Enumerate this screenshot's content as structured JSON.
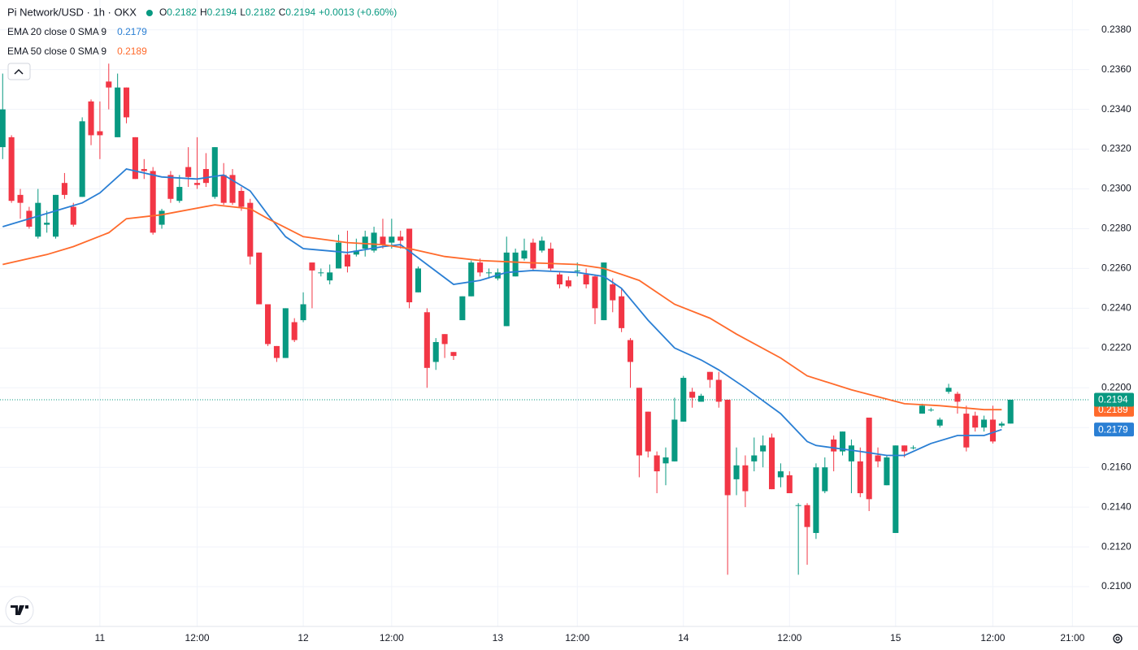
{
  "chart_data": {
    "type": "candlestick",
    "title": "Pi Network/USD · 1h · OKX",
    "header": {
      "labels": [
        "O",
        "H",
        "L",
        "C"
      ],
      "change": "+0.0013 (+0.60%)"
    },
    "up_color": "#089981",
    "down_color": "#f23645",
    "candles": [
      [
        0.2321,
        0.2358,
        0.2315,
        0.234
      ],
      [
        0.2326,
        0.2327,
        0.2293,
        0.2294
      ],
      [
        0.2297,
        0.23,
        0.2285,
        0.2293
      ],
      [
        0.2289,
        0.2291,
        0.228,
        0.2281
      ],
      [
        0.2276,
        0.23,
        0.2275,
        0.2293
      ],
      [
        0.2282,
        0.2289,
        0.2278,
        0.2283
      ],
      [
        0.2276,
        0.2297,
        0.2275,
        0.2297
      ],
      [
        0.2303,
        0.2308,
        0.2295,
        0.2297
      ],
      [
        0.2291,
        0.2293,
        0.2281,
        0.2282
      ],
      [
        0.2296,
        0.2336,
        0.2296,
        0.2334
      ],
      [
        0.2344,
        0.2345,
        0.2322,
        0.2327
      ],
      [
        0.2329,
        0.2344,
        0.2315,
        0.2327
      ],
      [
        0.2354,
        0.2363,
        0.234,
        0.2351
      ],
      [
        0.2326,
        0.2358,
        0.2326,
        0.2351
      ],
      [
        0.2351,
        0.2351,
        0.2333,
        0.2336
      ],
      [
        0.2326,
        0.2326,
        0.2305,
        0.2305
      ],
      [
        0.231,
        0.2315,
        0.2305,
        0.2309
      ],
      [
        0.2309,
        0.2311,
        0.2277,
        0.2278
      ],
      [
        0.2282,
        0.229,
        0.228,
        0.2289
      ],
      [
        0.2307,
        0.2309,
        0.2293,
        0.2295
      ],
      [
        0.2294,
        0.2307,
        0.2293,
        0.2301
      ],
      [
        0.2311,
        0.2321,
        0.2301,
        0.2306
      ],
      [
        0.2303,
        0.2326,
        0.23,
        0.2302
      ],
      [
        0.231,
        0.2318,
        0.2301,
        0.2303
      ],
      [
        0.2296,
        0.2321,
        0.2295,
        0.2321
      ],
      [
        0.2307,
        0.2313,
        0.2292,
        0.2293
      ],
      [
        0.2307,
        0.231,
        0.2292,
        0.2293
      ],
      [
        0.2299,
        0.2301,
        0.2289,
        0.2291
      ],
      [
        0.2293,
        0.2295,
        0.2262,
        0.2266
      ],
      [
        0.2268,
        0.2268,
        0.2242,
        0.2242
      ],
      [
        0.2242,
        0.2242,
        0.2221,
        0.2222
      ],
      [
        0.2221,
        0.2221,
        0.2213,
        0.2215
      ],
      [
        0.2215,
        0.224,
        0.2215,
        0.224
      ],
      [
        0.2233,
        0.2235,
        0.2223,
        0.2224
      ],
      [
        0.2234,
        0.2248,
        0.2233,
        0.2242
      ],
      [
        0.2263,
        0.2263,
        0.224,
        0.2259
      ],
      [
        0.2258,
        0.226,
        0.2256,
        0.2258
      ],
      [
        0.2254,
        0.2262,
        0.2252,
        0.2258
      ],
      [
        0.226,
        0.2277,
        0.226,
        0.2273
      ],
      [
        0.2267,
        0.2279,
        0.2258,
        0.2261
      ],
      [
        0.2267,
        0.2275,
        0.2266,
        0.2269
      ],
      [
        0.227,
        0.2279,
        0.2266,
        0.2276
      ],
      [
        0.2269,
        0.2281,
        0.2268,
        0.2278
      ],
      [
        0.2276,
        0.2285,
        0.227,
        0.2272
      ],
      [
        0.2273,
        0.2285,
        0.227,
        0.2276
      ],
      [
        0.2276,
        0.2279,
        0.227,
        0.2274
      ],
      [
        0.228,
        0.228,
        0.224,
        0.2243
      ],
      [
        0.2248,
        0.2261,
        0.2248,
        0.226
      ],
      [
        0.2238,
        0.224,
        0.22,
        0.221
      ],
      [
        0.2213,
        0.2225,
        0.2209,
        0.2223
      ],
      [
        0.2227,
        0.2227,
        0.2215,
        0.2222
      ],
      [
        0.2218,
        0.2218,
        0.2214,
        0.2216
      ],
      [
        0.2234,
        0.2246,
        0.2234,
        0.2246
      ],
      [
        0.2246,
        0.2264,
        0.2246,
        0.2263
      ],
      [
        0.2263,
        0.2265,
        0.2256,
        0.2258
      ],
      [
        0.2258,
        0.226,
        0.2255,
        0.2258
      ],
      [
        0.2255,
        0.226,
        0.2254,
        0.2258
      ],
      [
        0.2231,
        0.2276,
        0.2231,
        0.2268
      ],
      [
        0.2256,
        0.227,
        0.2256,
        0.2268
      ],
      [
        0.2265,
        0.2275,
        0.2264,
        0.2269
      ],
      [
        0.2273,
        0.2275,
        0.2259,
        0.226
      ],
      [
        0.2269,
        0.2276,
        0.2268,
        0.2274
      ],
      [
        0.227,
        0.2273,
        0.2259,
        0.226
      ],
      [
        0.2257,
        0.2258,
        0.225,
        0.2252
      ],
      [
        0.2254,
        0.2256,
        0.225,
        0.2251
      ],
      [
        0.2259,
        0.2263,
        0.2256,
        0.2259
      ],
      [
        0.2257,
        0.226,
        0.225,
        0.2252
      ],
      [
        0.2256,
        0.2257,
        0.2232,
        0.224
      ],
      [
        0.2234,
        0.2263,
        0.2234,
        0.2263
      ],
      [
        0.2252,
        0.2255,
        0.2238,
        0.2244
      ],
      [
        0.2246,
        0.225,
        0.2228,
        0.223
      ],
      [
        0.2224,
        0.2225,
        0.22,
        0.2213
      ],
      [
        0.22,
        0.22,
        0.2155,
        0.2166
      ],
      [
        0.2188,
        0.2188,
        0.2165,
        0.2168
      ],
      [
        0.2166,
        0.2168,
        0.2147,
        0.2158
      ],
      [
        0.2162,
        0.217,
        0.2151,
        0.2165
      ],
      [
        0.2163,
        0.2195,
        0.2163,
        0.2184
      ],
      [
        0.2183,
        0.2206,
        0.2183,
        0.2205
      ],
      [
        0.2198,
        0.22,
        0.219,
        0.2195
      ],
      [
        0.2193,
        0.2197,
        0.2193,
        0.2196
      ],
      [
        0.2208,
        0.2208,
        0.22,
        0.2204
      ],
      [
        0.2204,
        0.2208,
        0.219,
        0.2193
      ],
      [
        0.2194,
        0.2194,
        0.2106,
        0.2146
      ],
      [
        0.2154,
        0.217,
        0.2146,
        0.2161
      ],
      [
        0.2161,
        0.2166,
        0.214,
        0.2148
      ],
      [
        0.2163,
        0.2175,
        0.2158,
        0.2166
      ],
      [
        0.2168,
        0.2176,
        0.216,
        0.2171
      ],
      [
        0.2175,
        0.2177,
        0.2149,
        0.2149
      ],
      [
        0.2155,
        0.2162,
        0.215,
        0.2158
      ],
      [
        0.2156,
        0.2158,
        0.2147,
        0.2147
      ],
      [
        0.2141,
        0.2142,
        0.2106,
        0.2141
      ],
      [
        0.2141,
        0.2142,
        0.2111,
        0.213
      ],
      [
        0.2127,
        0.2162,
        0.2124,
        0.216
      ],
      [
        0.2148,
        0.2165,
        0.2147,
        0.216
      ],
      [
        0.2174,
        0.2176,
        0.2158,
        0.2168
      ],
      [
        0.2168,
        0.2178,
        0.2166,
        0.2178
      ],
      [
        0.2163,
        0.2174,
        0.2147,
        0.2171
      ],
      [
        0.2163,
        0.217,
        0.2145,
        0.2147
      ],
      [
        0.2185,
        0.2185,
        0.2138,
        0.2144
      ],
      [
        0.2166,
        0.217,
        0.216,
        0.2163
      ],
      [
        0.2151,
        0.2166,
        0.2151,
        0.2165
      ],
      [
        0.2127,
        0.2171,
        0.2127,
        0.2171
      ],
      [
        0.2171,
        0.2171,
        0.2165,
        0.2168
      ],
      [
        0.217,
        0.2171,
        0.2169,
        0.217
      ],
      [
        0.2187,
        0.2192,
        0.2187,
        0.2191
      ],
      [
        0.2189,
        0.219,
        0.2188,
        0.2189
      ],
      [
        0.2181,
        0.2185,
        0.218,
        0.2184
      ],
      [
        0.2198,
        0.2202,
        0.2197,
        0.22
      ],
      [
        0.2197,
        0.2198,
        0.2187,
        0.2193
      ],
      [
        0.2187,
        0.2191,
        0.2168,
        0.217
      ],
      [
        0.2186,
        0.2188,
        0.2178,
        0.218
      ],
      [
        0.218,
        0.2186,
        0.2178,
        0.2184
      ],
      [
        0.2184,
        0.2191,
        0.2172,
        0.2173
      ],
      [
        0.2181,
        0.2183,
        0.218,
        0.2182
      ],
      [
        0.2182,
        0.2194,
        0.2182,
        0.2194
      ]
    ],
    "series": [
      {
        "name": "EMA 20 close 0 SMA 9",
        "color": "#2a7fd4",
        "last_value": 0.2179,
        "x": [
          0,
          9,
          11,
          14,
          18,
          22,
          25,
          28,
          30,
          32,
          34,
          39,
          43,
          45,
          48,
          51,
          54,
          57,
          60,
          65,
          68,
          70,
          73,
          76,
          79,
          81,
          84,
          88,
          91,
          92,
          97,
          100,
          102,
          105,
          108,
          111,
          113
        ],
        "values": [
          0.2281,
          0.2293,
          0.2298,
          0.231,
          0.2306,
          0.2305,
          0.2307,
          0.2299,
          0.2287,
          0.2276,
          0.227,
          0.2268,
          0.2271,
          0.2272,
          0.2262,
          0.2252,
          0.2254,
          0.2258,
          0.2259,
          0.2258,
          0.2256,
          0.225,
          0.2234,
          0.222,
          0.2214,
          0.2209,
          0.22,
          0.2187,
          0.2173,
          0.2171,
          0.2168,
          0.2166,
          0.2166,
          0.2172,
          0.2176,
          0.2176,
          0.2179
        ]
      },
      {
        "name": "EMA 50 close 0 SMA 9",
        "color": "#ff6a2b",
        "last_value": 0.2189,
        "x": [
          0,
          5,
          8,
          12,
          14,
          18,
          24,
          28,
          30,
          34,
          39,
          43,
          46,
          50,
          54,
          59,
          65,
          68,
          72,
          76,
          80,
          83,
          88,
          91,
          96,
          102,
          106,
          111,
          113
        ],
        "values": [
          0.2262,
          0.2267,
          0.2271,
          0.2278,
          0.2285,
          0.2287,
          0.2292,
          0.229,
          0.2285,
          0.2276,
          0.2273,
          0.2272,
          0.227,
          0.2266,
          0.2264,
          0.2263,
          0.2262,
          0.226,
          0.2254,
          0.2242,
          0.2235,
          0.2227,
          0.2215,
          0.2206,
          0.2199,
          0.2192,
          0.2191,
          0.2189,
          0.2189
        ]
      }
    ],
    "xlim": [
      -0.3,
      122.9
    ],
    "xticks": [
      {
        "value": 11,
        "label": "11"
      },
      {
        "value": 22,
        "label": "12:00"
      },
      {
        "value": 34,
        "label": "12"
      },
      {
        "value": 44,
        "label": "12:00"
      },
      {
        "value": 56,
        "label": "13"
      },
      {
        "value": 65,
        "label": "12:00"
      },
      {
        "value": 77,
        "label": "14"
      },
      {
        "value": 89,
        "label": "12:00"
      },
      {
        "value": 101,
        "label": "15"
      },
      {
        "value": 112,
        "label": "12:00"
      },
      {
        "value": 121,
        "label": "21:00"
      }
    ],
    "ylim": [
      0.208,
      0.2395
    ],
    "yticks": [
      {
        "value": 0.21,
        "label": "0.2100"
      },
      {
        "value": 0.212,
        "label": "0.2120"
      },
      {
        "value": 0.214,
        "label": "0.2140"
      },
      {
        "value": 0.216,
        "label": "0.2160"
      },
      {
        "value": 0.218,
        "label": "0.2180"
      },
      {
        "value": 0.22,
        "label": "0.2200"
      },
      {
        "value": 0.222,
        "label": "0.2220"
      },
      {
        "value": 0.224,
        "label": "0.2240"
      },
      {
        "value": 0.226,
        "label": "0.2260"
      },
      {
        "value": 0.228,
        "label": "0.2280"
      },
      {
        "value": 0.23,
        "label": "0.2300"
      },
      {
        "value": 0.232,
        "label": "0.2320"
      },
      {
        "value": 0.234,
        "label": "0.2340"
      },
      {
        "value": 0.236,
        "label": "0.2360"
      },
      {
        "value": 0.238,
        "label": "0.2380"
      }
    ],
    "grid": true
  }
}
